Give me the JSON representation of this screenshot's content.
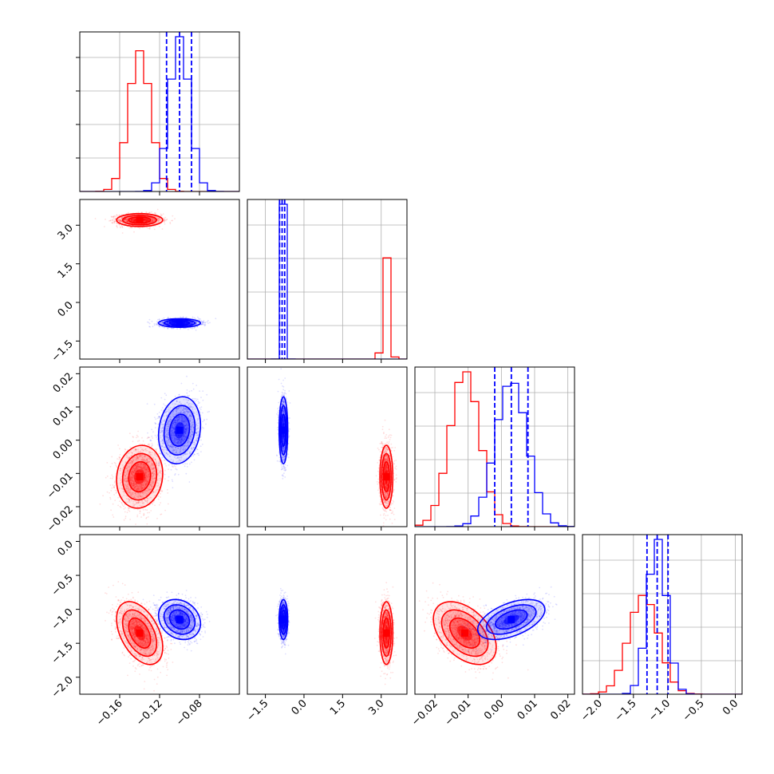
{
  "colors": {
    "red": "#ff0000",
    "blue": "#0000ff",
    "grid": "#b0b0b0",
    "frame": "#000000"
  },
  "chart_data": {
    "type": "corner",
    "variables": [
      {
        "range": [
          -0.2,
          -0.04
        ],
        "ticks": [
          -0.16,
          -0.12,
          -0.08
        ],
        "tick_labels": [
          "−0.16",
          "−0.12",
          "−0.08"
        ]
      },
      {
        "range": [
          -2.2,
          4.0
        ],
        "ticks": [
          -1.5,
          0.0,
          1.5,
          3.0
        ],
        "tick_labels": [
          "−1.5",
          "0.0",
          "1.5",
          "3.0"
        ]
      },
      {
        "range": [
          -0.026,
          0.022
        ],
        "ticks": [
          -0.02,
          -0.01,
          0.0,
          0.01,
          0.02
        ],
        "tick_labels": [
          "−0.02",
          "−0.01",
          "0.00",
          "0.01",
          "0.02"
        ]
      },
      {
        "range": [
          -2.25,
          0.1
        ],
        "ticks": [
          -2.0,
          -1.5,
          -1.0,
          -0.5,
          0.0
        ],
        "tick_labels": [
          "−2.0",
          "−1.5",
          "−1.0",
          "−0.5",
          "0.0"
        ]
      }
    ],
    "series": [
      {
        "color": "red",
        "mean": [
          -0.14,
          3.2,
          -0.011,
          -1.35
        ],
        "std": [
          0.011,
          0.12,
          0.0045,
          0.22
        ]
      },
      {
        "color": "blue",
        "mean": [
          -0.1,
          -0.8,
          0.003,
          -1.15
        ],
        "std": [
          0.01,
          0.08,
          0.0048,
          0.14
        ]
      }
    ],
    "quantiles": [
      [
        -0.113,
        -0.1,
        -0.088
      ],
      [
        -0.95,
        -0.85,
        -0.75
      ],
      [
        -0.002,
        0.003,
        0.008
      ],
      [
        -1.3,
        -1.15,
        -0.99
      ]
    ],
    "grid": true
  }
}
